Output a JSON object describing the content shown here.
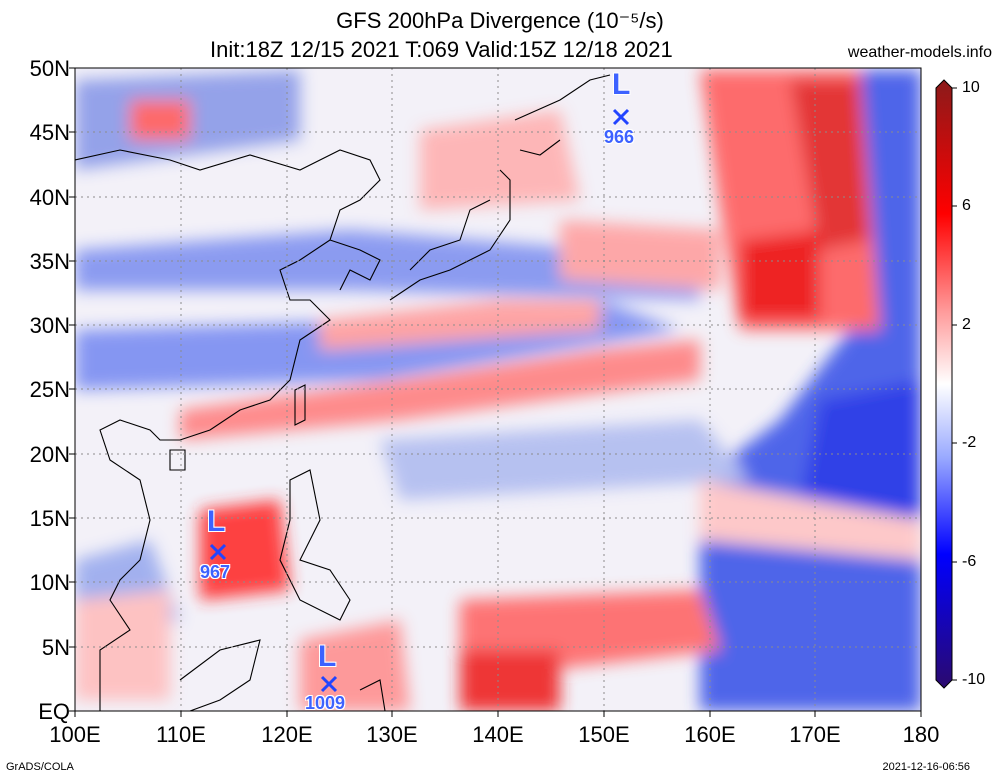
{
  "title": {
    "line1": "GFS 200hPa Divergence (10⁻⁵/s)",
    "line2": "Init:18Z 12/15 2021 T:069 Valid:15Z 12/18 2021"
  },
  "site": "weather-models.info",
  "credit": "GrADS/COLA",
  "timestamp": "2021-12-16-06:56",
  "lat_labels": [
    "50N",
    "45N",
    "40N",
    "35N",
    "30N",
    "25N",
    "20N",
    "15N",
    "10N",
    "5N",
    "EQ"
  ],
  "lon_labels": [
    "100E",
    "110E",
    "120E",
    "130E",
    "140E",
    "150E",
    "160E",
    "170E",
    "180"
  ],
  "colorbar": {
    "labels": [
      "10",
      "6",
      "2",
      "-2",
      "-6",
      "-10"
    ],
    "colors": [
      "#2b0a6e",
      "#0000ff",
      "#5c7cff",
      "#c9d3ff",
      "#ffffff",
      "#ffc9c9",
      "#ff6b6b",
      "#ff0000",
      "#8b1a1a"
    ]
  },
  "lows": [
    {
      "mark": "L",
      "pressure": "966"
    },
    {
      "mark": "L",
      "pressure": "967"
    },
    {
      "mark": "L",
      "pressure": "1009"
    }
  ]
}
